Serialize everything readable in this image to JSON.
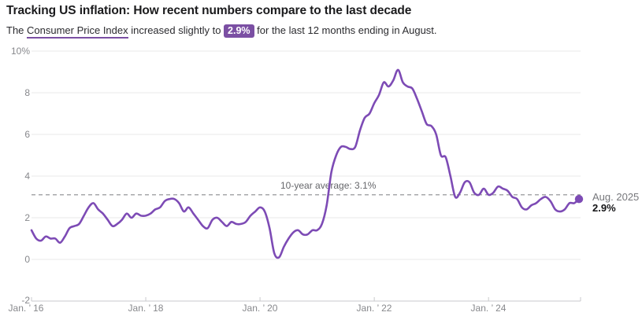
{
  "colors": {
    "accent_purple": "#7b4fa3",
    "line_purple": "#7d4bb5",
    "grid": "#e8e8ea",
    "axis": "#c9cacc",
    "avg_dash": "#8a8b8d"
  },
  "header": {
    "title": "Tracking US inflation: How recent numbers compare to the last decade",
    "subtitle_prefix": "The ",
    "subtitle_link": "Consumer Price Index",
    "subtitle_mid": " increased slightly to ",
    "badge": "2.9%",
    "subtitle_suffix": " for the last 12 months ending in August."
  },
  "chart": {
    "y_ticks": [
      "10%",
      "8",
      "6",
      "4",
      "2",
      "0",
      "-2"
    ],
    "x_ticks": [
      "Jan. ’ 16",
      "Jan. ’ 18",
      "Jan. ’ 20",
      "Jan. ’ 22",
      "Jan. ’ 24"
    ],
    "avg_label": "10-year average: 3.1%",
    "annotation": {
      "line1": "Aug. 2025",
      "line2": "2.9%"
    }
  },
  "chart_data": {
    "type": "line",
    "title": "Tracking US inflation: How recent numbers compare to the last decade",
    "series_name": "Consumer Price Index, year-over-year % change",
    "frequency": "monthly",
    "x_start": "2016-01",
    "x_end": "2025-08",
    "x_tick_labels": [
      "Jan. ’ 16",
      "Jan. ’ 18",
      "Jan. ’ 20",
      "Jan. ’ 22",
      "Jan. ’ 24"
    ],
    "ylim": [
      -2,
      10
    ],
    "y_tick_step": 2,
    "grid": "horizontal-only",
    "average_line": 3.1,
    "latest_point": {
      "label": "Aug. 2025",
      "value": 2.9
    },
    "values": [
      1.4,
      1.0,
      0.9,
      1.1,
      1.0,
      1.0,
      0.8,
      1.1,
      1.5,
      1.6,
      1.7,
      2.1,
      2.5,
      2.7,
      2.4,
      2.2,
      1.9,
      1.6,
      1.7,
      1.9,
      2.2,
      2.0,
      2.2,
      2.1,
      2.1,
      2.2,
      2.4,
      2.5,
      2.8,
      2.9,
      2.9,
      2.7,
      2.3,
      2.5,
      2.2,
      1.9,
      1.6,
      1.5,
      1.9,
      2.0,
      1.8,
      1.6,
      1.8,
      1.7,
      1.7,
      1.8,
      2.1,
      2.3,
      2.5,
      2.3,
      1.5,
      0.3,
      0.1,
      0.6,
      1.0,
      1.3,
      1.4,
      1.2,
      1.2,
      1.4,
      1.4,
      1.7,
      2.6,
      4.2,
      5.0,
      5.4,
      5.4,
      5.3,
      5.4,
      6.2,
      6.8,
      7.0,
      7.5,
      7.9,
      8.5,
      8.3,
      8.6,
      9.1,
      8.5,
      8.3,
      8.2,
      7.7,
      7.1,
      6.5,
      6.4,
      6.0,
      5.0,
      4.9,
      4.0,
      3.0,
      3.2,
      3.7,
      3.7,
      3.2,
      3.1,
      3.4,
      3.1,
      3.2,
      3.5,
      3.4,
      3.3,
      3.0,
      2.9,
      2.5,
      2.4,
      2.6,
      2.7,
      2.9,
      3.0,
      2.8,
      2.4,
      2.3,
      2.4,
      2.7,
      2.7,
      2.9
    ]
  }
}
